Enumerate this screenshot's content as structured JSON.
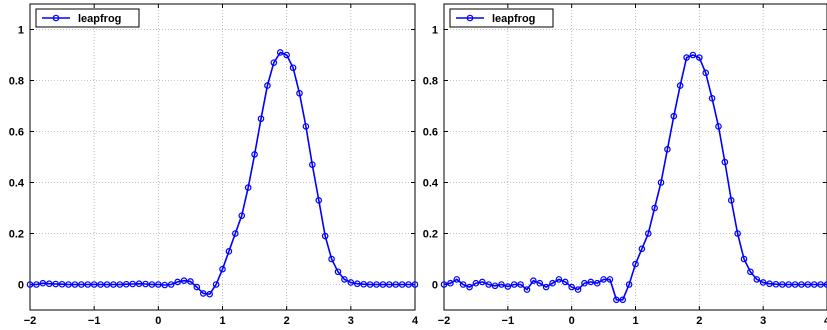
{
  "chart_data": [
    {
      "type": "line",
      "title": "",
      "xlabel": "",
      "ylabel": "",
      "xlim": [
        -2,
        4
      ],
      "ylim": [
        -0.1,
        1.1
      ],
      "xticks": [
        -2,
        -1,
        0,
        1,
        2,
        3,
        4
      ],
      "xtick_labels": [
        "−2",
        "−1",
        "0",
        "1",
        "2",
        "3",
        "4"
      ],
      "yticks": [
        0,
        0.2,
        0.4,
        0.6,
        0.8,
        1
      ],
      "ytick_labels": [
        "0",
        "0.2",
        "0.4",
        "0.6",
        "0.8",
        "1"
      ],
      "grid": true,
      "legend": "top-left",
      "series": [
        {
          "name": "leapfrog",
          "color": "#0000ff",
          "marker": "circle",
          "x": [
            -2.0,
            -1.9,
            -1.8,
            -1.7,
            -1.6,
            -1.5,
            -1.4,
            -1.3,
            -1.2,
            -1.1,
            -1.0,
            -0.9,
            -0.8,
            -0.7,
            -0.6,
            -0.5,
            -0.4,
            -0.3,
            -0.2,
            -0.1,
            0.0,
            0.1,
            0.2,
            0.3,
            0.4,
            0.5,
            0.6,
            0.7,
            0.8,
            0.9,
            1.0,
            1.1,
            1.2,
            1.3,
            1.4,
            1.5,
            1.6,
            1.7,
            1.8,
            1.9,
            2.0,
            2.1,
            2.2,
            2.3,
            2.4,
            2.5,
            2.6,
            2.7,
            2.8,
            2.9,
            3.0,
            3.1,
            3.2,
            3.3,
            3.4,
            3.5,
            3.6,
            3.7,
            3.8,
            3.9,
            4.0
          ],
          "y": [
            0.0,
            0.0,
            0.005,
            0.003,
            0.002,
            0.001,
            0.0,
            0.0,
            0.0,
            0.0,
            0.0,
            0.0,
            0.0,
            0.0,
            0.0,
            0.001,
            0.002,
            0.003,
            0.002,
            0.0,
            0.0,
            -0.002,
            0.0,
            0.01,
            0.015,
            0.012,
            -0.01,
            -0.035,
            -0.038,
            0.0,
            0.06,
            0.13,
            0.2,
            0.27,
            0.38,
            0.51,
            0.65,
            0.78,
            0.87,
            0.91,
            0.9,
            0.85,
            0.75,
            0.62,
            0.47,
            0.33,
            0.19,
            0.1,
            0.05,
            0.02,
            0.008,
            0.003,
            0.001,
            0.0,
            0.0,
            0.0,
            0.0,
            0.0,
            0.0,
            0.0,
            0.0
          ]
        }
      ]
    },
    {
      "type": "line",
      "title": "",
      "xlabel": "",
      "ylabel": "",
      "xlim": [
        -2,
        4
      ],
      "ylim": [
        -0.1,
        1.1
      ],
      "xticks": [
        -2,
        -1,
        0,
        1,
        2,
        3,
        4
      ],
      "xtick_labels": [
        "−2",
        "−1",
        "0",
        "1",
        "2",
        "3",
        "4"
      ],
      "yticks": [
        0,
        0.2,
        0.4,
        0.6,
        0.8,
        1
      ],
      "ytick_labels": [
        "0",
        "0.2",
        "0.4",
        "0.6",
        "0.8",
        "1"
      ],
      "grid": true,
      "legend": "top-left",
      "series": [
        {
          "name": "leapfrog",
          "color": "#0000ff",
          "marker": "circle",
          "x": [
            -2.0,
            -1.9,
            -1.8,
            -1.7,
            -1.6,
            -1.5,
            -1.4,
            -1.3,
            -1.2,
            -1.1,
            -1.0,
            -0.9,
            -0.8,
            -0.7,
            -0.6,
            -0.5,
            -0.4,
            -0.3,
            -0.2,
            -0.1,
            0.0,
            0.1,
            0.2,
            0.3,
            0.4,
            0.5,
            0.6,
            0.7,
            0.8,
            0.9,
            1.0,
            1.1,
            1.2,
            1.3,
            1.4,
            1.5,
            1.6,
            1.7,
            1.8,
            1.9,
            2.0,
            2.1,
            2.2,
            2.3,
            2.4,
            2.5,
            2.6,
            2.7,
            2.8,
            2.9,
            3.0,
            3.1,
            3.2,
            3.3,
            3.4,
            3.5,
            3.6,
            3.7,
            3.8,
            3.9,
            4.0
          ],
          "y": [
            0.0,
            0.005,
            0.02,
            0.0,
            -0.01,
            0.005,
            0.01,
            0.0,
            -0.005,
            0.0,
            -0.008,
            0.0,
            0.0,
            -0.02,
            0.015,
            0.005,
            -0.01,
            0.005,
            0.02,
            0.01,
            -0.01,
            -0.02,
            0.005,
            0.01,
            0.005,
            0.02,
            0.02,
            -0.06,
            -0.06,
            0.0,
            0.08,
            0.14,
            0.2,
            0.3,
            0.4,
            0.53,
            0.66,
            0.78,
            0.89,
            0.9,
            0.89,
            0.83,
            0.73,
            0.62,
            0.48,
            0.33,
            0.2,
            0.1,
            0.05,
            0.02,
            0.008,
            0.003,
            0.001,
            0.0,
            0.0,
            0.0,
            0.0,
            0.0,
            0.0,
            0.0,
            0.0
          ]
        }
      ]
    }
  ]
}
